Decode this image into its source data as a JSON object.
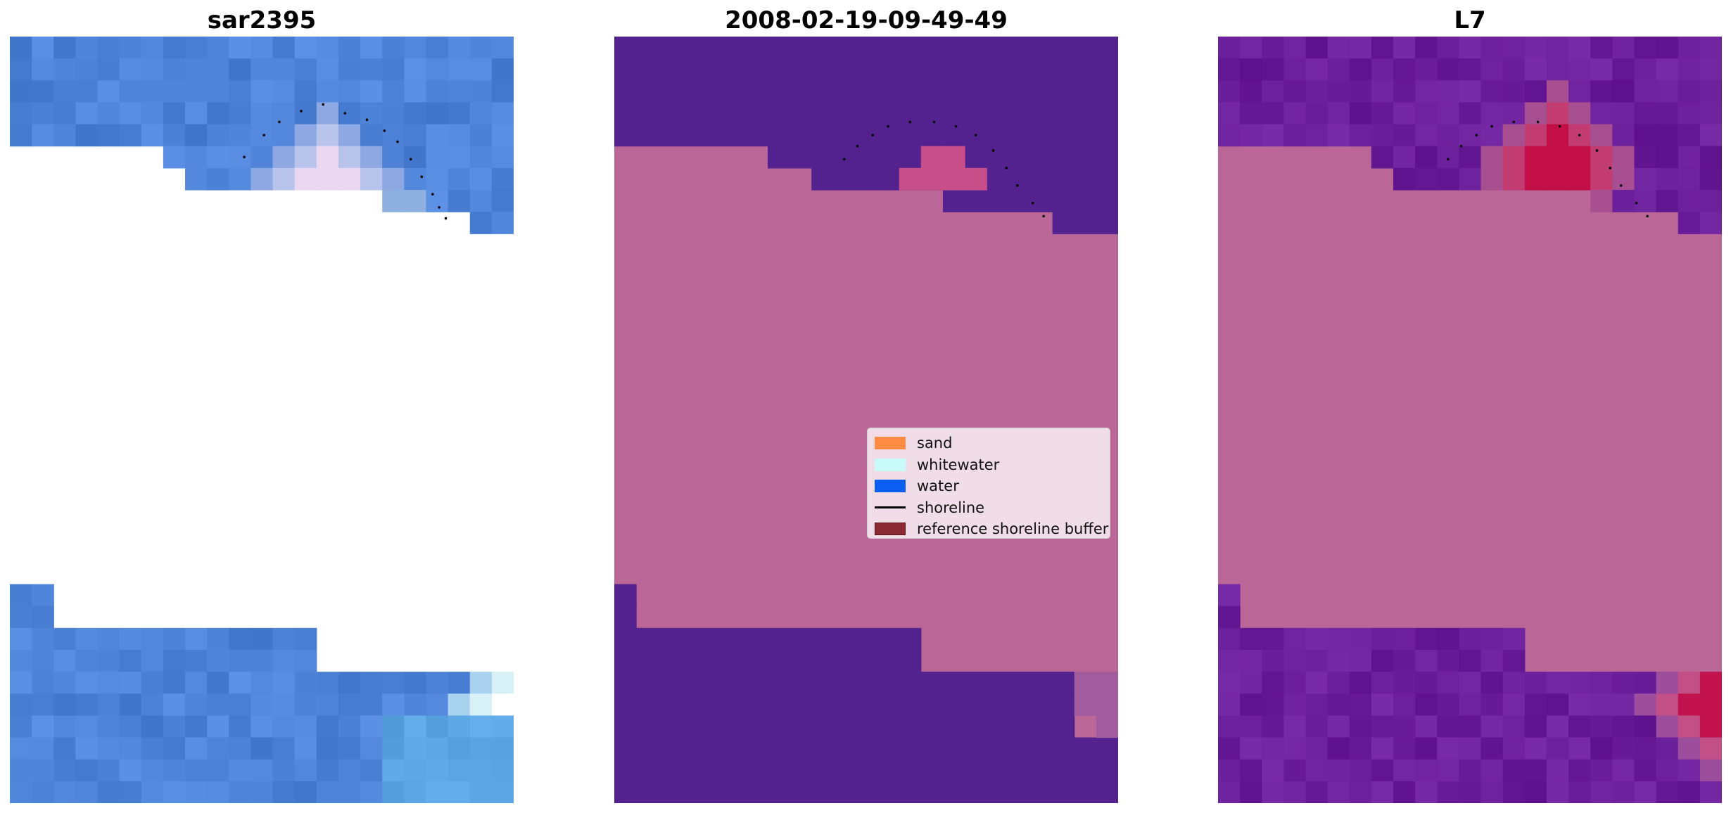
{
  "panels": [
    {
      "title": "sar2395"
    },
    {
      "title": "2008-02-19-09-49-49"
    },
    {
      "title": "L7"
    }
  ],
  "legend": {
    "items": [
      {
        "label": "sand",
        "kind": "patch",
        "color": "#ff8c42"
      },
      {
        "label": "whitewater",
        "kind": "patch",
        "color": "#c8fafa"
      },
      {
        "label": "water",
        "kind": "patch",
        "color": "#0a5ff0"
      },
      {
        "label": "shoreline",
        "kind": "line",
        "color": "#000000"
      },
      {
        "label": "reference shoreline buffer",
        "kind": "patch",
        "color": "#8c2a34"
      }
    ]
  },
  "colors": {
    "rgb_blue": "#4f83d8",
    "class_purple": "#53228f",
    "class_pink": "#ba6696",
    "class_pink_spot": "#c84e8a",
    "mndwi_purple": "#6b1e99",
    "mndwi_pink": "#ba6696",
    "mndwi_red": "#c2134e",
    "shoreline": "#000000"
  }
}
